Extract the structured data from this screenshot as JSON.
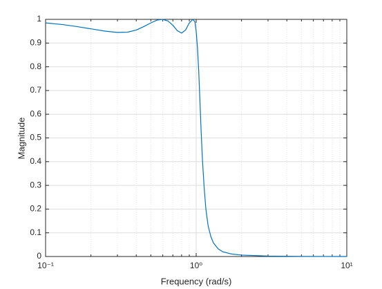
{
  "chart_data": {
    "type": "line",
    "xlabel": "Frequency (rad/s)",
    "ylabel": "Magnitude",
    "xscale": "log",
    "grid": true,
    "minor_grid": true,
    "color": "#0072bd",
    "x": [
      0.1,
      0.13,
      0.16,
      0.2,
      0.25,
      0.3,
      0.35,
      0.4,
      0.45,
      0.5,
      0.55,
      0.6,
      0.65,
      0.7,
      0.75,
      0.8,
      0.85,
      0.9,
      0.95,
      0.98,
      1.0,
      1.02,
      1.04,
      1.06,
      1.08,
      1.1,
      1.13,
      1.16,
      1.2,
      1.25,
      1.3,
      1.4,
      1.5,
      1.7,
      2,
      3,
      5,
      10
    ],
    "values": [
      0.985,
      0.978,
      0.97,
      0.96,
      0.95,
      0.945,
      0.946,
      0.955,
      0.97,
      0.985,
      0.997,
      1.0,
      0.993,
      0.975,
      0.952,
      0.942,
      0.955,
      0.985,
      1.0,
      0.99,
      0.95,
      0.88,
      0.78,
      0.65,
      0.52,
      0.41,
      0.29,
      0.2,
      0.13,
      0.085,
      0.058,
      0.032,
      0.02,
      0.011,
      0.006,
      0.002,
      0.0005,
      0.0001
    ],
    "xlim": [
      0.1,
      10
    ],
    "ylim": [
      0,
      1
    ],
    "xticks": [
      {
        "value": 0.1,
        "label": "10⁻¹"
      },
      {
        "value": 1,
        "label": "10⁰"
      },
      {
        "value": 10,
        "label": "10¹"
      }
    ],
    "xminorticks": [
      0.2,
      0.3,
      0.4,
      0.5,
      0.6,
      0.7,
      0.8,
      0.9,
      2,
      3,
      4,
      5,
      6,
      7,
      8,
      9
    ],
    "yticks": [
      0,
      0.1,
      0.2,
      0.3,
      0.4,
      0.5,
      0.6,
      0.7,
      0.8,
      0.9,
      1
    ]
  }
}
